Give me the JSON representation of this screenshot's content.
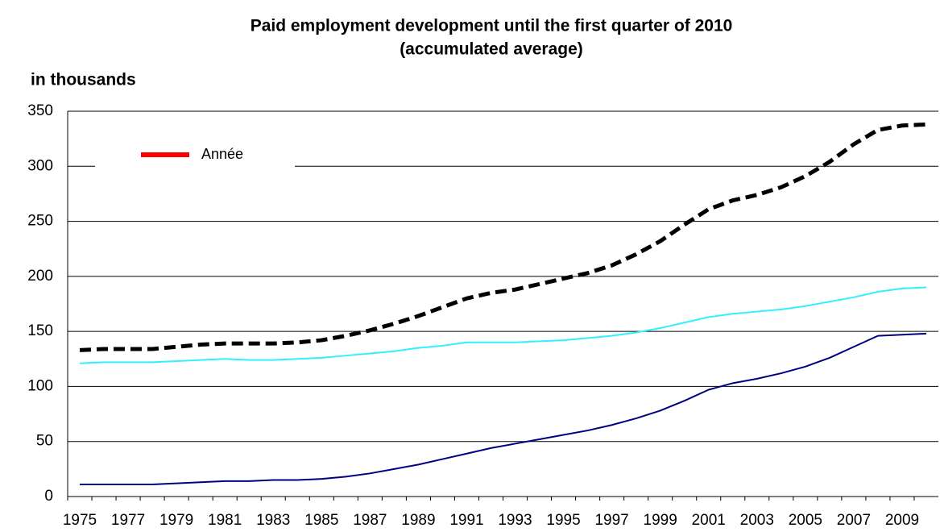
{
  "chart_data": {
    "type": "line",
    "title": "Paid employment development until the first quarter of 2010",
    "subtitle": "(accumulated average)",
    "y_label": "in thousands",
    "categories": [
      "1975",
      null,
      "1977",
      null,
      "1979",
      null,
      "1981",
      null,
      "1983",
      null,
      "1985",
      null,
      "1987",
      null,
      "1989",
      null,
      "1991",
      null,
      "1993",
      null,
      "1995",
      null,
      "1997",
      null,
      "1999",
      null,
      "2001",
      null,
      "2003",
      null,
      "2005",
      null,
      "2007",
      null,
      "2009",
      null
    ],
    "series": [
      {
        "color": "#000000",
        "dashed": true,
        "values": [
          133,
          134,
          134,
          134,
          136,
          138,
          139,
          139,
          139,
          140,
          142,
          146,
          151,
          157,
          164,
          172,
          180,
          185,
          188,
          193,
          198,
          203,
          210,
          220,
          232,
          247,
          261,
          269,
          274,
          281,
          291,
          304,
          320,
          333,
          337,
          338
        ]
      },
      {
        "color": "#33f0ff",
        "dashed": false,
        "values": [
          121,
          122,
          122,
          122,
          123,
          124,
          125,
          124,
          124,
          125,
          126,
          128,
          130,
          132,
          135,
          137,
          140,
          140,
          140,
          141,
          142,
          144,
          146,
          149,
          153,
          158,
          163,
          166,
          168,
          170,
          173,
          177,
          181,
          186,
          189,
          190
        ]
      },
      {
        "color": "#000080",
        "dashed": false,
        "values": [
          11,
          11,
          11,
          11,
          12,
          13,
          14,
          14,
          15,
          15,
          16,
          18,
          21,
          25,
          29,
          34,
          39,
          44,
          48,
          52,
          56,
          60,
          65,
          71,
          78,
          87,
          97,
          103,
          107,
          112,
          118,
          126,
          136,
          146,
          147,
          148
        ]
      }
    ],
    "legend": {
      "name": "Année",
      "color": "#ff0000"
    },
    "ylim": [
      0,
      350
    ],
    "yticks": [
      0,
      50,
      100,
      150,
      200,
      250,
      300,
      350
    ],
    "grid": true
  }
}
